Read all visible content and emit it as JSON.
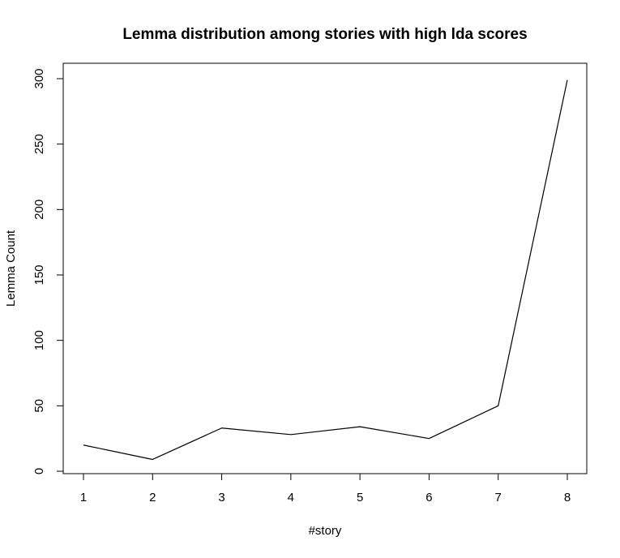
{
  "chart_data": {
    "type": "line",
    "title": "Lemma distribution among stories with high lda scores",
    "xlabel": "#story",
    "ylabel": "Lemma Count",
    "x": [
      1,
      2,
      3,
      4,
      5,
      6,
      7,
      8
    ],
    "series": [
      {
        "values": [
          20,
          9,
          33,
          28,
          34,
          25,
          50,
          299
        ]
      }
    ],
    "xticks": [
      "1",
      "2",
      "3",
      "4",
      "5",
      "6",
      "7",
      "8"
    ],
    "yticks": [
      "0",
      "50",
      "100",
      "150",
      "200",
      "250",
      "300"
    ],
    "ylim": [
      0,
      300
    ],
    "xlim": [
      1,
      8
    ],
    "grid": false,
    "legend": "none",
    "line_color": "#000000"
  }
}
